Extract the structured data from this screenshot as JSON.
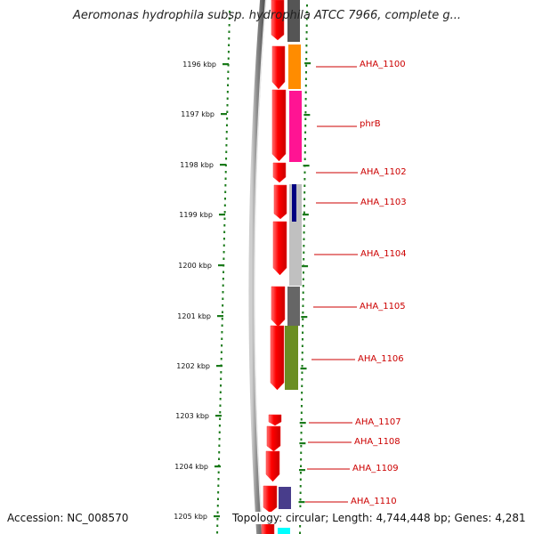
{
  "title": "Aeromonas hydrophila subsp. hydrophila ATCC 7966, complete g...",
  "accession": "Accession: NC_008570",
  "topology": "Topology: circular; Length: 4,744,448 bp; Genes: 4,281",
  "colors": {
    "backbone": "#808080",
    "cds": "#ff0000",
    "tick": "#1a7a1a",
    "label": "#cc0000"
  },
  "kbp_ticks": [
    "1196 kbp",
    "1197 kbp",
    "1198 kbp",
    "1199 kbp",
    "1200 kbp",
    "1201 kbp",
    "1202 kbp",
    "1203 kbp",
    "1204 kbp",
    "1205 kbp"
  ],
  "genes": [
    {
      "id": "top",
      "label": "",
      "color": "#555555"
    },
    {
      "id": "g1100",
      "label": "AHA_1100",
      "color": "#ff8c00"
    },
    {
      "id": "gphrB",
      "label": "phrB",
      "color": "#ff1493"
    },
    {
      "id": "g1102",
      "label": "AHA_1102",
      "color": ""
    },
    {
      "id": "g1103",
      "label": "AHA_1103",
      "color": "#c0c0c0"
    },
    {
      "id": "g1104",
      "label": "AHA_1104",
      "color": "#c0c0c0"
    },
    {
      "id": "g1105",
      "label": "AHA_1105",
      "color": "#666666"
    },
    {
      "id": "g1106",
      "label": "AHA_1106",
      "color": "#6b8e23"
    },
    {
      "id": "g1107",
      "label": "AHA_1107",
      "color": ""
    },
    {
      "id": "g1108",
      "label": "AHA_1108",
      "color": ""
    },
    {
      "id": "g1109",
      "label": "AHA_1109",
      "color": ""
    },
    {
      "id": "g1110",
      "label": "AHA_1110",
      "color": "#483d8b"
    },
    {
      "id": "bottom",
      "label": "",
      "color": "#00ffff"
    }
  ]
}
